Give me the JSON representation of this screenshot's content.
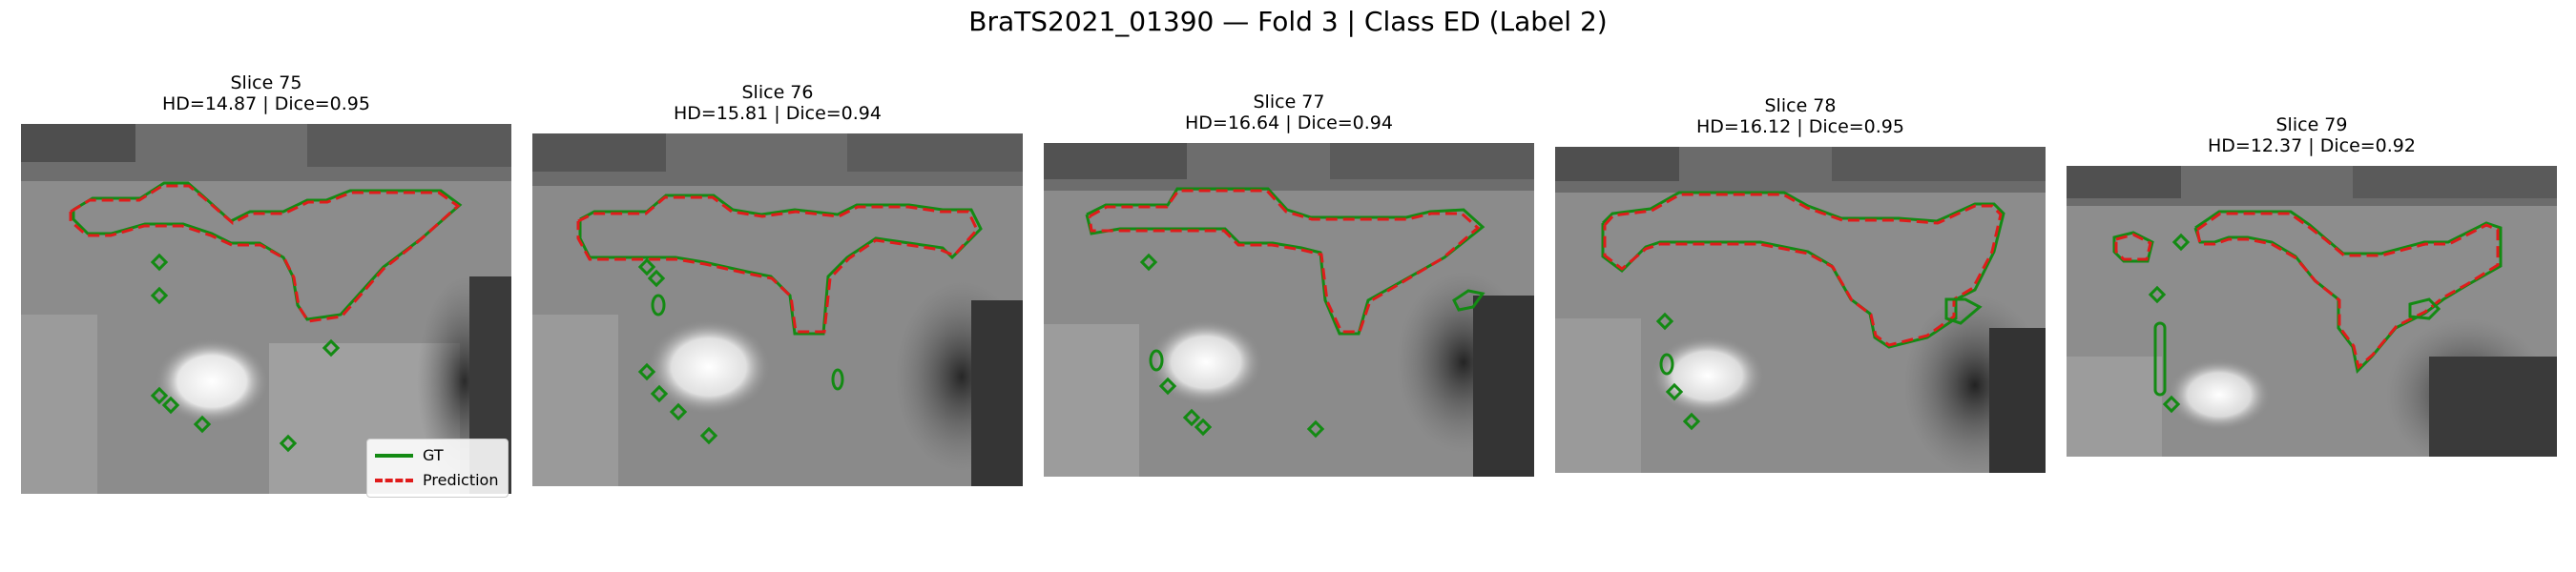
{
  "figure": {
    "title": "BraTS2021_01390 — Fold 3 | Class ED (Label 2)"
  },
  "legend": {
    "gt_label": "GT",
    "pred_label": "Prediction"
  },
  "colors": {
    "gt": "#138a13",
    "prediction": "#e01b1b"
  },
  "panels": [
    {
      "title": "Slice 75",
      "metrics": "HD=14.87 | Dice=0.95"
    },
    {
      "title": "Slice 76",
      "metrics": "HD=15.81 | Dice=0.94"
    },
    {
      "title": "Slice 77",
      "metrics": "HD=16.64 | Dice=0.94"
    },
    {
      "title": "Slice 78",
      "metrics": "HD=16.12 | Dice=0.95"
    },
    {
      "title": "Slice 79",
      "metrics": "HD=12.37 | Dice=0.92"
    }
  ]
}
